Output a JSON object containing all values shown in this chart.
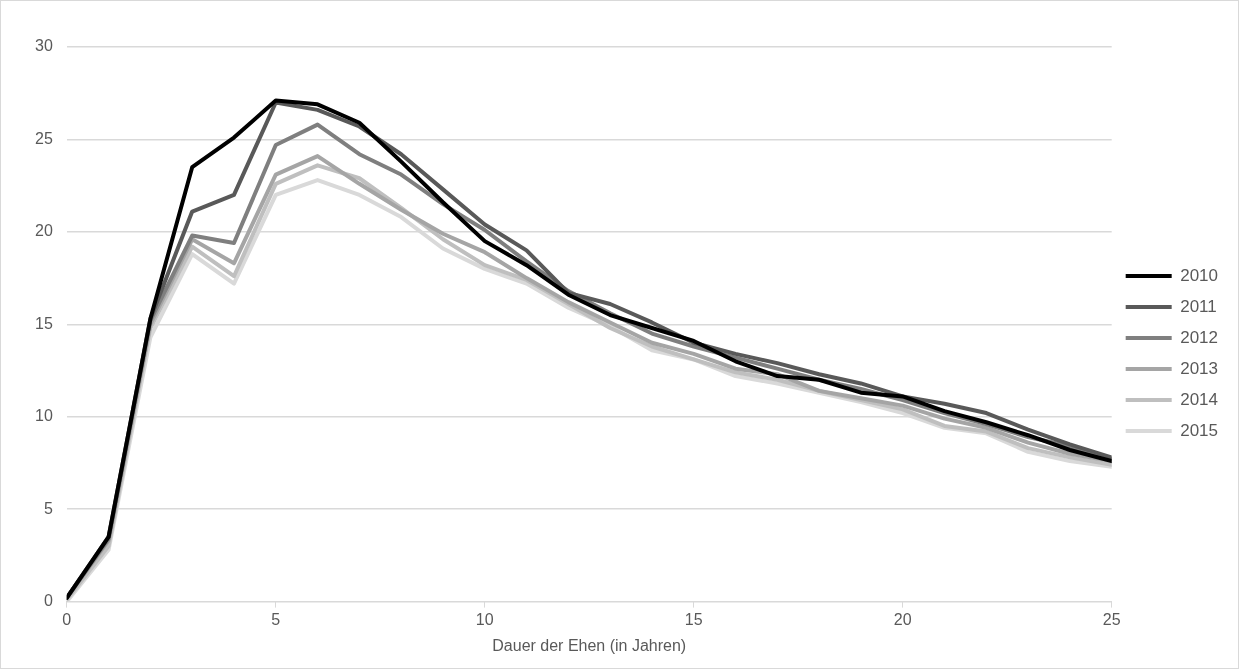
{
  "chart_data": {
    "type": "line",
    "xlabel": "Dauer der Ehen (in Jahren)",
    "x": [
      0,
      1,
      2,
      3,
      4,
      5,
      6,
      7,
      8,
      9,
      10,
      11,
      12,
      13,
      14,
      15,
      16,
      17,
      18,
      19,
      20,
      21,
      22,
      23,
      24,
      25
    ],
    "xlim": [
      0,
      25
    ],
    "xticks": [
      0,
      5,
      10,
      15,
      20,
      25
    ],
    "ylim": [
      0,
      30
    ],
    "yticks": [
      0,
      5,
      10,
      15,
      20,
      25,
      30
    ],
    "grid": "y",
    "legend": "right",
    "marker": "none",
    "line_style": "solid",
    "series": [
      {
        "name": "2010",
        "color": "#000000",
        "values": [
          0.2,
          3.5,
          15.3,
          23.5,
          25.1,
          27.1,
          26.9,
          25.9,
          23.8,
          21.6,
          19.5,
          18.2,
          16.6,
          15.5,
          14.8,
          14.1,
          13.0,
          12.2,
          12.0,
          11.3,
          11.1,
          10.3,
          9.7,
          9.0,
          8.2,
          7.6
        ]
      },
      {
        "name": "2011",
        "color": "#595959",
        "values": [
          0.2,
          3.5,
          15.3,
          21.1,
          22.0,
          27.0,
          26.6,
          25.7,
          24.2,
          22.3,
          20.4,
          19.0,
          16.7,
          16.1,
          15.1,
          14.0,
          13.4,
          12.9,
          12.3,
          11.8,
          11.1,
          10.7,
          10.2,
          9.3,
          8.5,
          7.8
        ]
      },
      {
        "name": "2012",
        "color": "#7f7f7f",
        "values": [
          0.2,
          3.4,
          15.2,
          19.8,
          19.4,
          24.7,
          25.8,
          24.2,
          23.1,
          21.5,
          20.1,
          18.4,
          16.8,
          15.6,
          14.5,
          13.8,
          13.2,
          12.6,
          12.0,
          11.5,
          10.9,
          10.2,
          9.6,
          8.9,
          8.4,
          7.7
        ]
      },
      {
        "name": "2013",
        "color": "#a5a5a5",
        "values": [
          0.2,
          3.3,
          15.0,
          19.6,
          18.3,
          23.1,
          24.1,
          22.6,
          21.2,
          19.9,
          18.9,
          17.5,
          16.2,
          15.1,
          14.0,
          13.4,
          12.6,
          12.3,
          11.4,
          11.0,
          10.6,
          9.9,
          9.4,
          8.6,
          8.0,
          7.6
        ]
      },
      {
        "name": "2014",
        "color": "#bfbfbf",
        "values": [
          0.1,
          3.0,
          14.8,
          19.2,
          17.6,
          22.6,
          23.6,
          22.9,
          21.3,
          19.6,
          18.2,
          17.4,
          16.1,
          14.8,
          13.8,
          13.1,
          12.4,
          12.0,
          11.4,
          10.9,
          10.4,
          9.5,
          9.2,
          8.3,
          7.8,
          7.4
        ]
      },
      {
        "name": "2015",
        "color": "#d9d9d9",
        "values": [
          0.0,
          2.8,
          14.3,
          18.8,
          17.2,
          22.0,
          22.8,
          22.0,
          20.8,
          19.1,
          18.0,
          17.2,
          15.9,
          14.9,
          13.6,
          13.1,
          12.2,
          11.8,
          11.3,
          10.8,
          10.2,
          9.4,
          9.1,
          8.1,
          7.6,
          7.3
        ]
      }
    ]
  }
}
